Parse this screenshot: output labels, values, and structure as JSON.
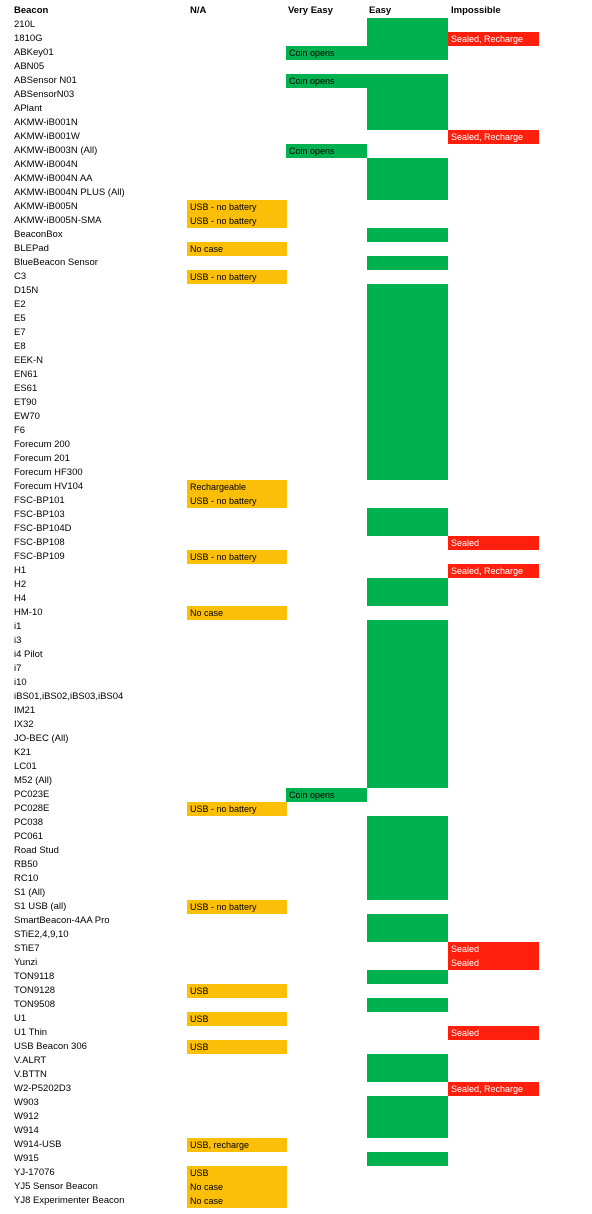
{
  "headers": {
    "beacon": "Beacon",
    "na": "N/A",
    "very_easy": "Very Easy",
    "easy": "Easy",
    "impossible": "Impossible"
  },
  "colors": {
    "na": "#fbbf08",
    "very_easy": "#00b14f",
    "easy": "#00b14f",
    "impossible": "#ff1f0c"
  },
  "rows": [
    {
      "name": "210L",
      "easy": true
    },
    {
      "name": "1810G",
      "easy": true,
      "impossible": "Sealed, Recharge"
    },
    {
      "name": "ABKey01",
      "very_easy": "Coin opens",
      "easy": true
    },
    {
      "name": "ABN05"
    },
    {
      "name": "ABSensor N01",
      "very_easy": "Coin opens",
      "easy": true
    },
    {
      "name": "ABSensorN03",
      "easy": true
    },
    {
      "name": "APlant",
      "easy": true
    },
    {
      "name": "AKMW-iB001N",
      "easy": true
    },
    {
      "name": "AKMW-iB001W",
      "impossible": "Sealed, Recharge"
    },
    {
      "name": "AKMW-iB003N (All)",
      "very_easy": "Coin opens"
    },
    {
      "name": "AKMW-iB004N",
      "easy": true
    },
    {
      "name": "AKMW-iB004N AA",
      "easy": true
    },
    {
      "name": "AKMW-iB004N PLUS (All)",
      "easy": true
    },
    {
      "name": "AKMW-iB005N",
      "na": "USB - no battery"
    },
    {
      "name": "AKMW-iB005N-SMA",
      "na": "USB - no battery"
    },
    {
      "name": "BeaconBox",
      "easy": true
    },
    {
      "name": "BLEPad",
      "na": "No case"
    },
    {
      "name": "BlueBeacon Sensor",
      "easy": true
    },
    {
      "name": "C3",
      "na": "USB - no battery"
    },
    {
      "name": "D15N",
      "easy": true
    },
    {
      "name": "E2",
      "easy": true
    },
    {
      "name": "E5",
      "easy": true
    },
    {
      "name": "E7",
      "easy": true
    },
    {
      "name": "E8",
      "easy": true
    },
    {
      "name": "EEK-N",
      "easy": true
    },
    {
      "name": "EN61",
      "easy": true
    },
    {
      "name": "ES61",
      "easy": true
    },
    {
      "name": "ET90",
      "easy": true
    },
    {
      "name": "EW70",
      "easy": true
    },
    {
      "name": "F6",
      "easy": true
    },
    {
      "name": "Forecum 200",
      "easy": true
    },
    {
      "name": "Forecum 201",
      "easy": true
    },
    {
      "name": "Forecum HF300",
      "easy": true
    },
    {
      "name": "Forecum HV104",
      "na": "Rechargeable"
    },
    {
      "name": "FSC-BP101",
      "na": "USB - no battery"
    },
    {
      "name": "FSC-BP103",
      "easy": true
    },
    {
      "name": "FSC-BP104D",
      "easy": true
    },
    {
      "name": "FSC-BP108",
      "impossible": "Sealed"
    },
    {
      "name": "FSC-BP109",
      "na": "USB - no battery"
    },
    {
      "name": "H1",
      "impossible": "Sealed, Recharge"
    },
    {
      "name": "H2",
      "easy": true
    },
    {
      "name": "H4",
      "easy": true
    },
    {
      "name": "HM-10",
      "na": "No case"
    },
    {
      "name": "i1",
      "easy": true
    },
    {
      "name": "i3",
      "easy": true
    },
    {
      "name": "i4 Pilot",
      "easy": true
    },
    {
      "name": "i7",
      "easy": true
    },
    {
      "name": "i10",
      "easy": true
    },
    {
      "name": "iBS01,iBS02,iBS03,iBS04",
      "easy": true
    },
    {
      "name": "IM21",
      "easy": true
    },
    {
      "name": "IX32",
      "easy": true
    },
    {
      "name": "JO-BEC (All)",
      "easy": true
    },
    {
      "name": "K21",
      "easy": true
    },
    {
      "name": "LC01",
      "easy": true
    },
    {
      "name": "M52 (All)",
      "easy": true
    },
    {
      "name": "PC023E",
      "very_easy": "Coin opens"
    },
    {
      "name": "PC028E",
      "na": "USB - no battery"
    },
    {
      "name": "PC038",
      "easy": true
    },
    {
      "name": "PC061",
      "easy": true
    },
    {
      "name": "Road Stud",
      "easy": true
    },
    {
      "name": "RB50",
      "easy": true
    },
    {
      "name": "RC10",
      "easy": true
    },
    {
      "name": "S1 (All)",
      "easy": true
    },
    {
      "name": "S1 USB (all)",
      "na": "USB - no battery"
    },
    {
      "name": "SmartBeacon-4AA Pro",
      "easy": true
    },
    {
      "name": "STiE2,4,9,10",
      "easy": true
    },
    {
      "name": "STiE7",
      "impossible": "Sealed"
    },
    {
      "name": "Yunzi",
      "impossible": "Sealed"
    },
    {
      "name": "TON9118",
      "easy": true
    },
    {
      "name": "TON9128",
      "na": "USB"
    },
    {
      "name": "TON9508",
      "easy": true
    },
    {
      "name": "U1",
      "na": "USB"
    },
    {
      "name": "U1 Thin",
      "impossible": "Sealed"
    },
    {
      "name": "USB Beacon 306",
      "na": "USB"
    },
    {
      "name": "V.ALRT",
      "easy": true
    },
    {
      "name": "V.BTTN",
      "easy": true
    },
    {
      "name": "W2-P5202D3",
      "impossible": "Sealed, Recharge"
    },
    {
      "name": "W903",
      "easy": true
    },
    {
      "name": "W912",
      "easy": true
    },
    {
      "name": "W914",
      "easy": true
    },
    {
      "name": "W914-USB",
      "na": "USB, recharge"
    },
    {
      "name": "W915",
      "easy": true
    },
    {
      "name": "YJ-17076",
      "na": "USB"
    },
    {
      "name": "YJ5 Sensor Beacon",
      "na": "No case"
    },
    {
      "name": "YJ8 Experimenter Beacon",
      "na": "No case"
    }
  ]
}
